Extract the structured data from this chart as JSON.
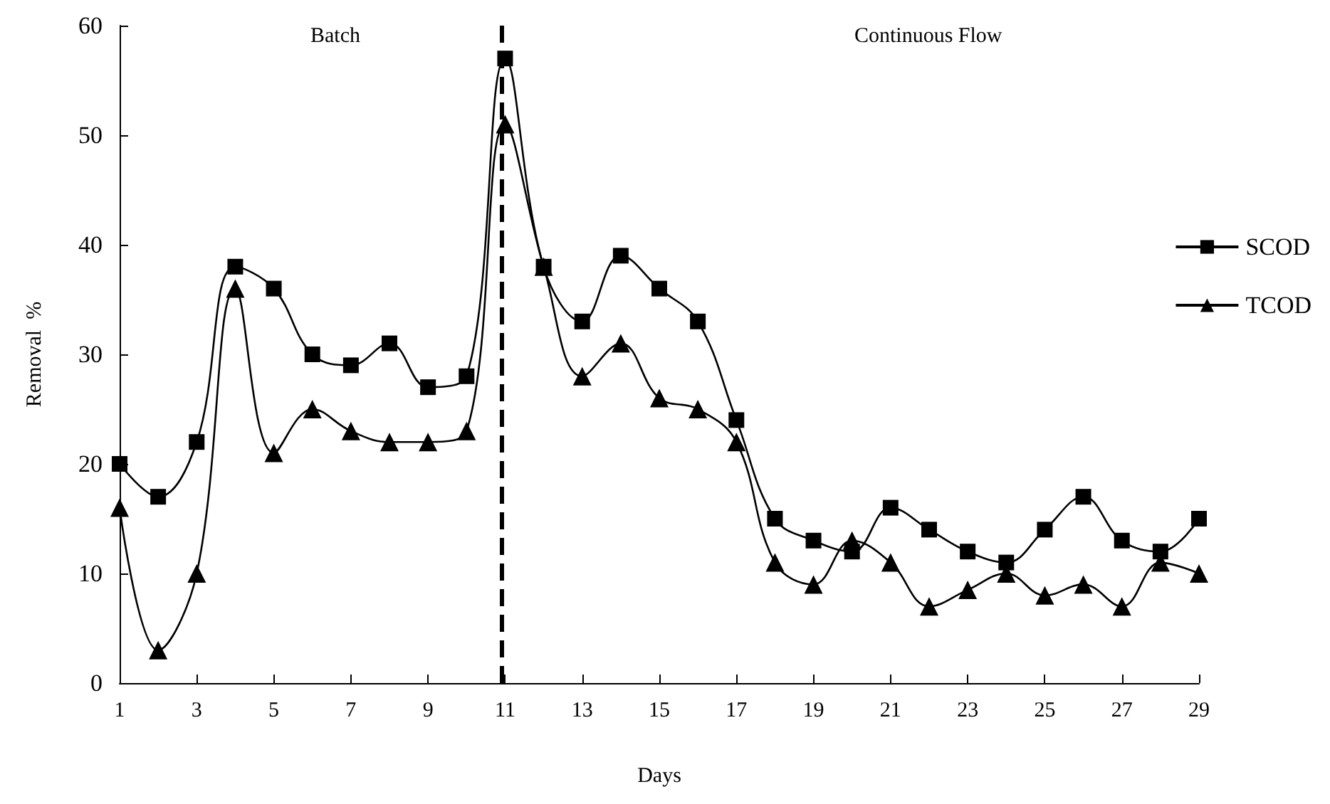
{
  "chart_data": {
    "type": "line",
    "xlabel": "Days",
    "ylabel": "Removal  %",
    "x": [
      1,
      2,
      3,
      4,
      5,
      6,
      7,
      8,
      9,
      10,
      11,
      12,
      13,
      14,
      15,
      16,
      17,
      18,
      19,
      20,
      21,
      22,
      23,
      24,
      25,
      26,
      27,
      28,
      29
    ],
    "series": [
      {
        "name": "SCOD",
        "color": "#000000",
        "marker": "square",
        "values": [
          20,
          17,
          22,
          38,
          36,
          30,
          29,
          31,
          27,
          28,
          57,
          38,
          33,
          39,
          36,
          33,
          24,
          15,
          13,
          12,
          16,
          14,
          12,
          11,
          14,
          17,
          13,
          12,
          15
        ]
      },
      {
        "name": "TCOD",
        "color": "#000000",
        "marker": "triangle",
        "values": [
          16,
          3,
          10,
          36,
          21,
          25,
          23,
          22,
          22,
          23,
          51,
          38,
          28,
          31,
          26,
          25,
          22,
          11,
          9,
          13,
          11,
          7,
          8.5,
          10,
          8,
          9,
          7,
          11,
          10
        ]
      }
    ],
    "xlim": [
      1,
      29
    ],
    "xticks": [
      1,
      3,
      5,
      7,
      9,
      11,
      13,
      15,
      17,
      19,
      21,
      23,
      25,
      27,
      29
    ],
    "ylim": [
      0,
      60
    ],
    "yticks": [
      0,
      10,
      20,
      30,
      40,
      50,
      60
    ],
    "ref_lines": [
      {
        "axis": "x",
        "value": 10.9,
        "line_style": "dashed",
        "color": "#000000"
      }
    ],
    "annotations": [
      "Batch",
      "Continuous Flow"
    ],
    "grid": false,
    "legend": "right",
    "line_style": "solid"
  }
}
